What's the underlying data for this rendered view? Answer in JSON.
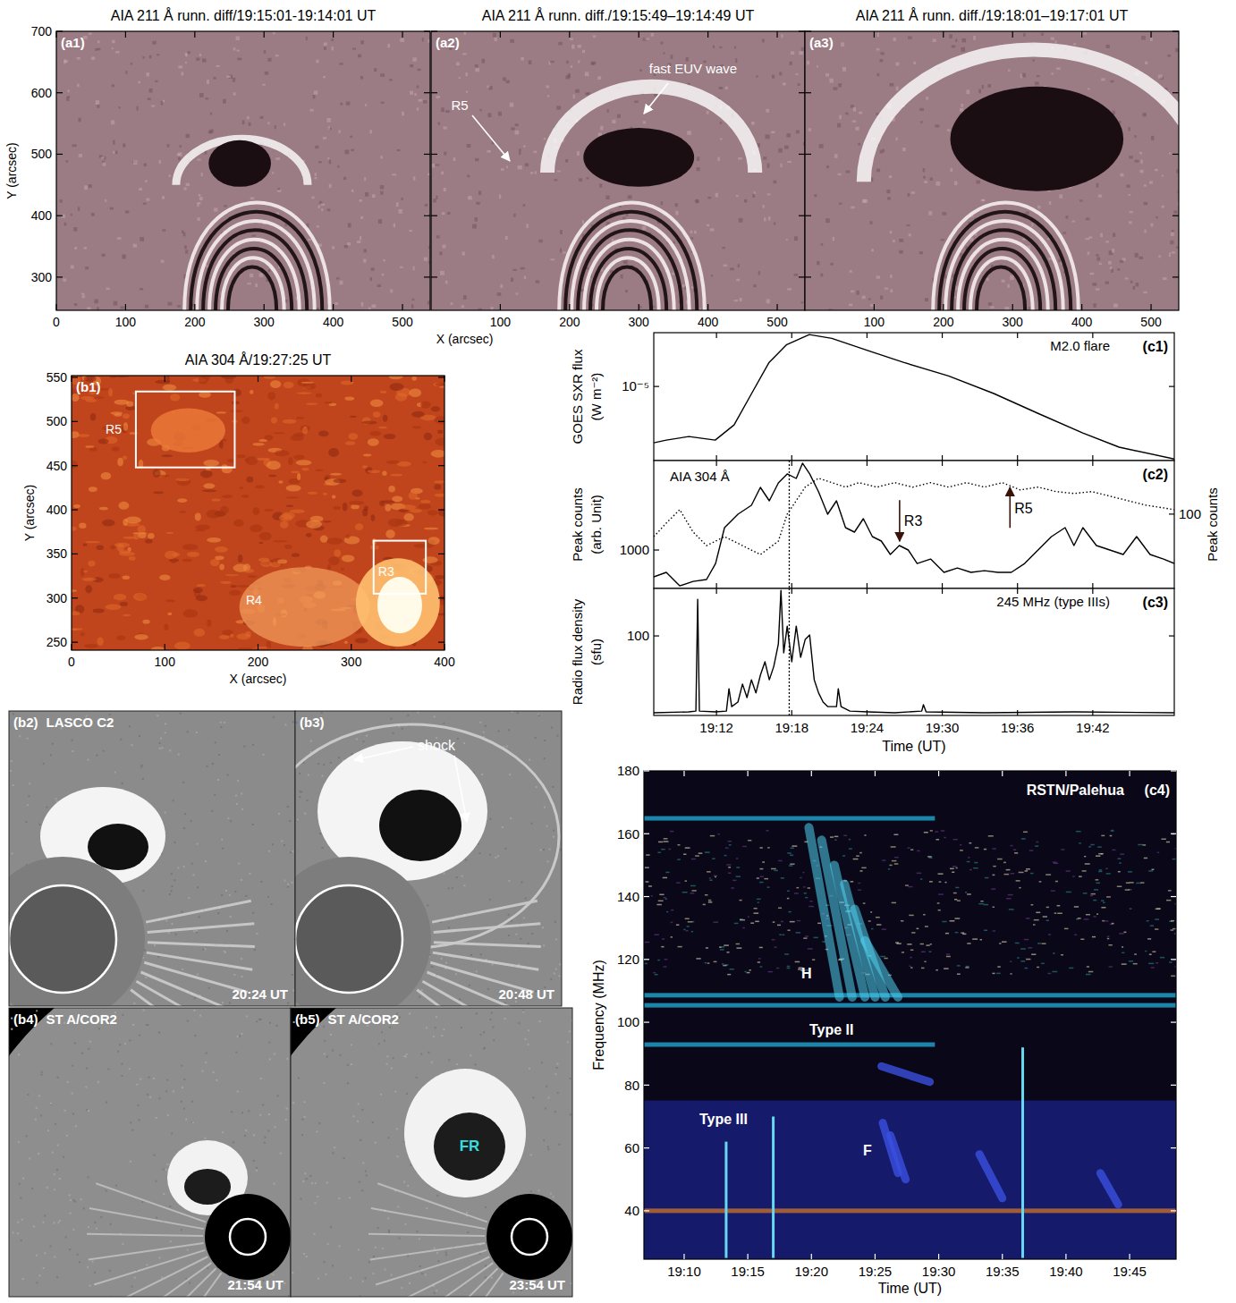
{
  "chart_data": [
    {
      "type": "image",
      "panel": "(a1)",
      "title": "AIA 211 Å runn. diff/19:15:01-19:14:01 UT",
      "xlim": [
        0,
        540
      ],
      "ylim": [
        246,
        700
      ],
      "xticks": [
        0,
        100,
        200,
        300,
        400,
        500
      ],
      "yticks": [
        300,
        400,
        500,
        600,
        700
      ],
      "ylabel": "Y (arcsec)"
    },
    {
      "type": "image",
      "panel": "(a2)",
      "title": "AIA 211 Å runn. diff./19:15:49–19:14:49 UT",
      "xlim": [
        0,
        540
      ],
      "ylim": [
        246,
        700
      ],
      "xticks": [
        100,
        200,
        300,
        400,
        500
      ],
      "yticks": [
        300,
        400,
        500,
        600,
        700
      ],
      "tick_labels": "x",
      "xlabel": "X (arcsec)",
      "annotations": [
        "fast EUV wave",
        "R5"
      ]
    },
    {
      "type": "image",
      "panel": "(a3)",
      "title": "AIA 211 Å runn. diff./19:18:01–19:17:01 UT",
      "xlim": [
        0,
        540
      ],
      "ylim": [
        246,
        700
      ],
      "xticks": [
        100,
        200,
        300,
        400,
        500
      ],
      "yticks": [
        300,
        400,
        500,
        600,
        700
      ],
      "tick_labels": "x"
    },
    {
      "type": "image",
      "panel": "(b1)",
      "title": "AIA 304 Å/19:27:25 UT",
      "xlim": [
        0,
        400
      ],
      "ylim": [
        241,
        552
      ],
      "xticks": [
        0,
        100,
        200,
        300,
        400
      ],
      "yticks": [
        250,
        300,
        350,
        400,
        450,
        500,
        550
      ],
      "xlabel": "X (arcsec)",
      "ylabel": "Y (arcsec)",
      "regions": [
        {
          "label": "R5",
          "x": [
            69,
            175
          ],
          "y": [
            448,
            534
          ]
        },
        {
          "label": "R3",
          "x": [
            324,
            380
          ],
          "y": [
            305,
            365
          ]
        }
      ],
      "annotations": [
        "R4"
      ]
    },
    {
      "type": "image",
      "panel": "(b2)",
      "instrument": "LASCO C2",
      "time": "20:24 UT",
      "tick_labels": false
    },
    {
      "type": "image",
      "panel": "(b3)",
      "time": "20:48 UT",
      "tick_labels": false,
      "annotations": [
        "shock"
      ]
    },
    {
      "type": "image",
      "panel": "(b4)",
      "instrument": "ST A/COR2",
      "time": "21:54 UT",
      "tick_labels": false
    },
    {
      "type": "image",
      "panel": "(b5)",
      "instrument": "ST A/COR2",
      "time": "23:54 UT",
      "tick_labels": false,
      "annotations": [
        "FR"
      ]
    },
    {
      "type": "line",
      "panel": "(c1)",
      "title": "M2.0 flare",
      "ylabel": "GOES SXR flux (W m⁻²)",
      "log": "y",
      "tick_labels": "y",
      "xlim": [
        7,
        48.5
      ],
      "xticks": [
        {
          "value": 12,
          "label": "19:12"
        },
        {
          "value": 18,
          "label": "19:18"
        },
        {
          "value": 24,
          "label": "19:24"
        },
        {
          "value": 30,
          "label": "19:30"
        },
        {
          "value": 36,
          "label": "19:36"
        },
        {
          "value": 42,
          "label": "19:42"
        }
      ],
      "ylim": [
        3.72e-06,
        2.05e-05
      ],
      "yticks": [
        {
          "value": 1e-05,
          "label": "10⁻⁵"
        }
      ],
      "x": [
        7,
        8,
        9.8,
        11.9,
        13.4,
        14.8,
        16.2,
        17.6,
        19.4,
        21.2,
        24.1,
        26.9,
        30.5,
        34.1,
        37.6,
        41.2,
        44.1,
        48.5
      ],
      "values": [
        4.72e-06,
        4.89e-06,
        5.13e-06,
        4.89e-06,
        5.99e-06,
        9.1e-06,
        1.38e-05,
        1.75e-05,
        2e-05,
        1.9e-05,
        1.61e-05,
        1.38e-05,
        1.15e-05,
        9.1e-06,
        7e-06,
        5.38e-06,
        4.45e-06,
        3.8e-06
      ]
    },
    {
      "type": "line",
      "panel": "(c2)",
      "title": "AIA 304 Å",
      "ylabel": "Peak counts (arb. Unit)",
      "y2label": "Peak counts",
      "log": "y",
      "tick_labels": "y",
      "xlim": [
        7,
        48.5
      ],
      "xticks": [
        {
          "value": 12,
          "label": "19:12"
        },
        {
          "value": 18,
          "label": "19:18"
        },
        {
          "value": 24,
          "label": "19:24"
        },
        {
          "value": 30,
          "label": "19:30"
        },
        {
          "value": 36,
          "label": "19:36"
        },
        {
          "value": 42,
          "label": "19:42"
        }
      ],
      "ylim": [
        610,
        3160
      ],
      "yticks": [
        1000
      ],
      "y2lim": [
        53,
        158
      ],
      "y2ticks": [
        100
      ],
      "reference_time": 17.8,
      "series": [
        {
          "line_style": "solid",
          "x": [
            7,
            8,
            9.07,
            10.14,
            11.21,
            11.93,
            12.64,
            13.71,
            14.79,
            15.5,
            16.21,
            16.93,
            17.64,
            18.36,
            18.86,
            19.43,
            20.14,
            20.86,
            21.57,
            22.29,
            23,
            23.71,
            24.43,
            25.14,
            25.86,
            26.57,
            27.29,
            28,
            29.07,
            30.14,
            31.21,
            32.29,
            33.36,
            34.43,
            35.5,
            36.57,
            37.64,
            38.71,
            39.79,
            40.5,
            41.21,
            42.29,
            43.36,
            44.43,
            45.5,
            46.57,
            47.64,
            48.5
          ],
          "values": [
            708,
            750,
            631,
            668,
            684,
            841,
            1334,
            1585,
            1778,
            2239,
            1884,
            2371,
            2661,
            2512,
            3055,
            2661,
            2113,
            1585,
            1884,
            1334,
            1259,
            1496,
            1189,
            1122,
            944,
            1059,
            1000,
            841,
            891,
            750,
            794,
            750,
            767,
            750,
            750,
            841,
            1000,
            1189,
            1334,
            1059,
            1334,
            1059,
            1000,
            944,
            1189,
            944,
            891,
            841
          ]
        },
        {
          "line_style": "dotted",
          "axis": "y2",
          "x": [
            7,
            8,
            9.07,
            10.14,
            11.21,
            12.64,
            14.07,
            15.5,
            16.93,
            17.64,
            18.36,
            19.07,
            20.14,
            21.21,
            22.29,
            23.36,
            24.79,
            26.21,
            27.64,
            29.07,
            30.5,
            31.93,
            33.36,
            34.79,
            36.21,
            37.64,
            39.07,
            40.5,
            41.93,
            43.36,
            44.79,
            46.21,
            47.64,
            48.5
          ],
          "values": [
            82.5,
            92.6,
            103.9,
            85.8,
            76.4,
            82.5,
            76.4,
            70.8,
            79.4,
            100,
            112.2,
            125.9,
            135.9,
            130.8,
            125.9,
            130.8,
            125.9,
            130.8,
            125.9,
            130.8,
            125.9,
            130.8,
            125.9,
            130.8,
            123.0,
            125.9,
            121.2,
            119.3,
            121.2,
            116.6,
            112.2,
            108.0,
            105.5,
            103.9
          ]
        }
      ],
      "annotations": [
        {
          "text": "R3",
          "x": 26.6,
          "y": [
            1900,
            1120
          ]
        },
        {
          "text": "R5",
          "x": 35.4,
          "y": [
            1330,
            2240
          ]
        }
      ]
    },
    {
      "type": "line",
      "panel": "(c3)",
      "title": "245 MHz (type IIIs)",
      "ylabel": "Radio flux density (sfu)",
      "xlabel": "Time (UT)",
      "log": "y",
      "xlim": [
        7,
        48.5
      ],
      "xticks": [
        {
          "value": 12,
          "label": "19:12"
        },
        {
          "value": 18,
          "label": "19:18"
        },
        {
          "value": 24,
          "label": "19:24"
        },
        {
          "value": 30,
          "label": "19:30"
        },
        {
          "value": 36,
          "label": "19:36"
        },
        {
          "value": 42,
          "label": "19:42"
        }
      ],
      "ylim": [
        25.5,
        226
      ],
      "yticks": [
        100
      ],
      "reference_time": 17.8,
      "x": [
        7,
        9.79,
        10.36,
        10.5,
        10.64,
        11.93,
        12.79,
        13,
        13.21,
        13.71,
        14.07,
        14.43,
        14.79,
        15.14,
        15.5,
        15.86,
        16.21,
        16.57,
        16.93,
        17.14,
        17.36,
        17.64,
        18,
        18.36,
        18.71,
        19.07,
        19.43,
        19.79,
        20.14,
        20.5,
        20.86,
        21.57,
        21.71,
        21.93,
        22.64,
        24.07,
        26.21,
        28.36,
        28.5,
        28.71,
        33.36,
        40.5,
        48.5
      ],
      "values": [
        26.7,
        27.1,
        27.5,
        187.6,
        27.5,
        27.1,
        27.5,
        40.4,
        29.7,
        32.1,
        43.7,
        34.7,
        47.1,
        37.5,
        50.9,
        64.1,
        47.1,
        59.3,
        87.1,
        218.8,
        74.7,
        118.4,
        64.1,
        118.4,
        69.2,
        94.0,
        101.5,
        47.1,
        37.5,
        32.1,
        29.7,
        29.7,
        40.4,
        29.7,
        27.5,
        27.1,
        26.7,
        27.5,
        30.7,
        27.1,
        26.7,
        27.1,
        26.7
      ]
    },
    {
      "type": "spectrogram",
      "panel": "(c4)",
      "title": "RSTN/Palehua",
      "xlabel": "Time (UT)",
      "ylabel": "Frequency (MHz)",
      "xlim": [
        6.84,
        48.65
      ],
      "xticks": [
        {
          "value": 10,
          "label": "19:10"
        },
        {
          "value": 15,
          "label": "19:15"
        },
        {
          "value": 20,
          "label": "19:20"
        },
        {
          "value": 25,
          "label": "19:25"
        },
        {
          "value": 30,
          "label": "19:30"
        },
        {
          "value": 35,
          "label": "19:35"
        },
        {
          "value": 40,
          "label": "19:40"
        },
        {
          "value": 45,
          "label": "19:45"
        }
      ],
      "ylim": [
        24.6,
        180
      ],
      "yticks": [
        40,
        60,
        80,
        100,
        120,
        140,
        160,
        180
      ],
      "interference_bands": [
        {
          "f": 164.9,
          "t": [
            6.84,
            29.7
          ]
        },
        {
          "f": 108.6,
          "t": [
            6.84,
            48.65
          ]
        },
        {
          "f": 105.4,
          "t": [
            6.84,
            48.65
          ]
        },
        {
          "f": 92.9,
          "t": [
            6.84,
            29.7
          ]
        },
        {
          "f": 40,
          "t": [
            6.84,
            48.65
          ]
        }
      ],
      "harmonic_lanes": [
        {
          "t": [
            19.8,
            22.2
          ],
          "f": [
            162,
            108
          ]
        },
        {
          "t": [
            20.8,
            23.2
          ],
          "f": [
            158,
            108
          ]
        },
        {
          "t": [
            21.8,
            24.2
          ],
          "f": [
            150,
            108
          ]
        },
        {
          "t": [
            22.6,
            25.0
          ],
          "f": [
            144,
            108
          ]
        },
        {
          "t": [
            23.4,
            25.8
          ],
          "f": [
            136,
            108
          ]
        },
        {
          "t": [
            24.2,
            26.8
          ],
          "f": [
            126,
            108
          ]
        }
      ],
      "fundamental_lanes": [
        {
          "t": [
            25.5,
            29.3
          ],
          "f": [
            86,
            81
          ]
        },
        {
          "t": [
            25.6,
            26.8
          ],
          "f": [
            68,
            52
          ]
        },
        {
          "t": [
            26.2,
            27.4
          ],
          "f": [
            64,
            50
          ]
        },
        {
          "t": [
            33.2,
            35.0
          ],
          "f": [
            58,
            44
          ]
        },
        {
          "t": [
            42.7,
            44.1
          ],
          "f": [
            52,
            42
          ]
        }
      ],
      "type_iii_bursts": [
        {
          "t": 13.3,
          "f": [
            25,
            62
          ]
        },
        {
          "t": 17.0,
          "f": [
            25,
            70
          ]
        },
        {
          "t": 36.6,
          "f": [
            25,
            92
          ]
        }
      ],
      "annotations": [
        "H",
        "F",
        "Type II",
        "Type III"
      ]
    }
  ]
}
